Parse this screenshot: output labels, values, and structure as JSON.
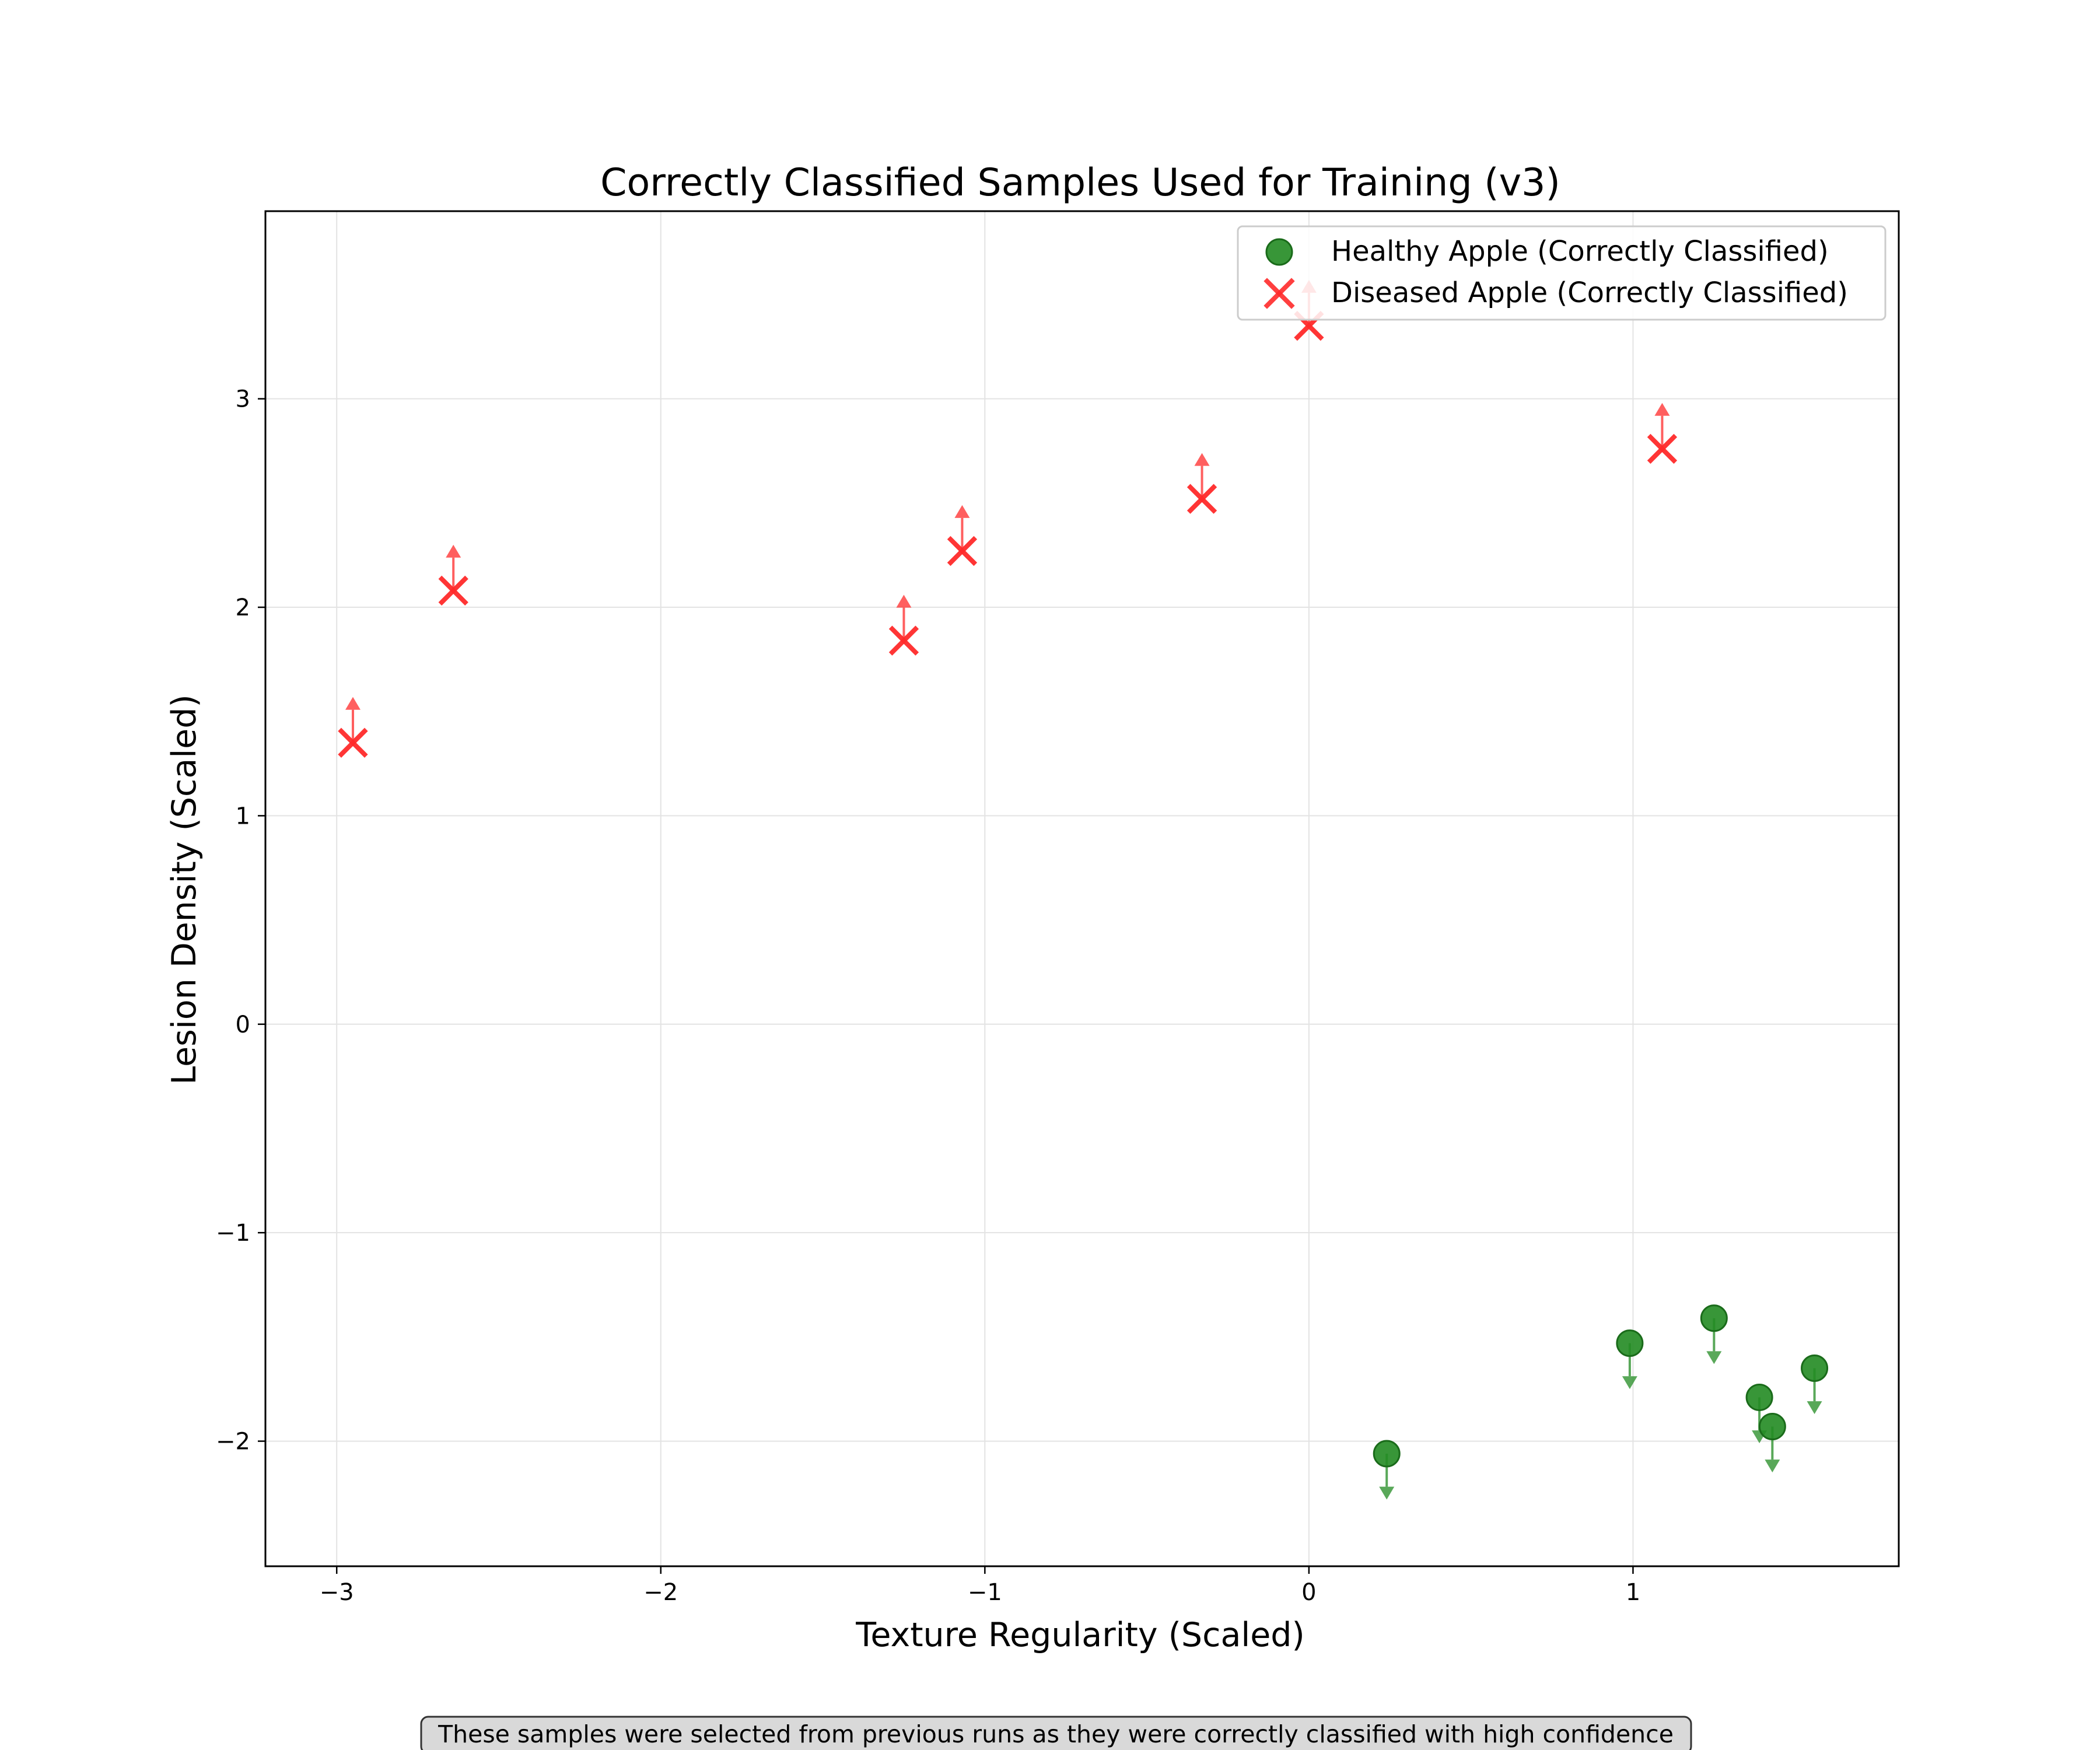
{
  "chart_data": {
    "type": "scatter",
    "title": "Correctly Classified Samples Used for Training (v3)",
    "xlabel": "Texture Regularity (Scaled)",
    "ylabel": "Lesion Density (Scaled)",
    "xlim": [
      -3.22,
      1.82
    ],
    "ylim": [
      -2.6,
      3.9
    ],
    "xticks": [
      -3,
      -2,
      -1,
      0,
      1
    ],
    "yticks": [
      -2,
      -1,
      0,
      1,
      2,
      3
    ],
    "xtick_labels": [
      "−3",
      "−2",
      "−1",
      "0",
      "1"
    ],
    "ytick_labels": [
      "−2",
      "−1",
      "0",
      "1",
      "2",
      "3"
    ],
    "grid": true,
    "legend_position": "top-right",
    "series": [
      {
        "name": "Healthy Apple (Correctly Classified)",
        "marker": "circle",
        "color": "#228b22",
        "arrow_direction": "down",
        "points": [
          {
            "x": 0.24,
            "y": -2.06
          },
          {
            "x": 0.99,
            "y": -1.53
          },
          {
            "x": 1.25,
            "y": -1.41
          },
          {
            "x": 1.39,
            "y": -1.79
          },
          {
            "x": 1.43,
            "y": -1.93
          },
          {
            "x": 1.56,
            "y": -1.65
          }
        ]
      },
      {
        "name": "Diseased Apple (Correctly Classified)",
        "marker": "x",
        "color": "#ff2a2a",
        "arrow_direction": "up",
        "points": [
          {
            "x": -2.95,
            "y": 1.35
          },
          {
            "x": -2.64,
            "y": 2.08
          },
          {
            "x": -1.25,
            "y": 1.84
          },
          {
            "x": -1.07,
            "y": 2.27
          },
          {
            "x": -0.33,
            "y": 2.52
          },
          {
            "x": 0.0,
            "y": 3.35
          },
          {
            "x": 1.09,
            "y": 2.76
          }
        ]
      }
    ],
    "note": "These samples were selected from previous runs as they were correctly classified with high confidence"
  }
}
